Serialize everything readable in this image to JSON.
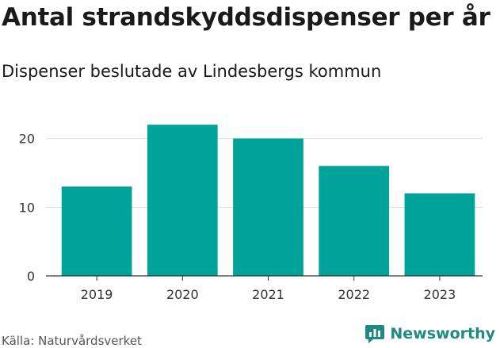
{
  "header": {
    "title": "Antal strandskyddsdispenser per år",
    "subtitle": "Dispenser beslutade av Lindesbergs kommun"
  },
  "footer": {
    "source": "Källa: Naturvårdsverket",
    "brand": "Newsworthy",
    "brand_icon": "newsworthy-logo-icon"
  },
  "colors": {
    "bar": "#00a399",
    "grid": "#d9d9d9",
    "axis": "#333333",
    "brand": "#1d8b7f"
  },
  "chart_data": {
    "type": "bar",
    "title": "Antal strandskyddsdispenser per år",
    "subtitle": "Dispenser beslutade av Lindesbergs kommun",
    "xlabel": "",
    "ylabel": "",
    "categories": [
      "2019",
      "2020",
      "2021",
      "2022",
      "2023"
    ],
    "values": [
      13,
      22,
      20,
      16,
      12
    ],
    "ylim": [
      0,
      24
    ],
    "yticks": [
      0,
      10,
      20
    ],
    "grid": true,
    "legend": "none"
  }
}
